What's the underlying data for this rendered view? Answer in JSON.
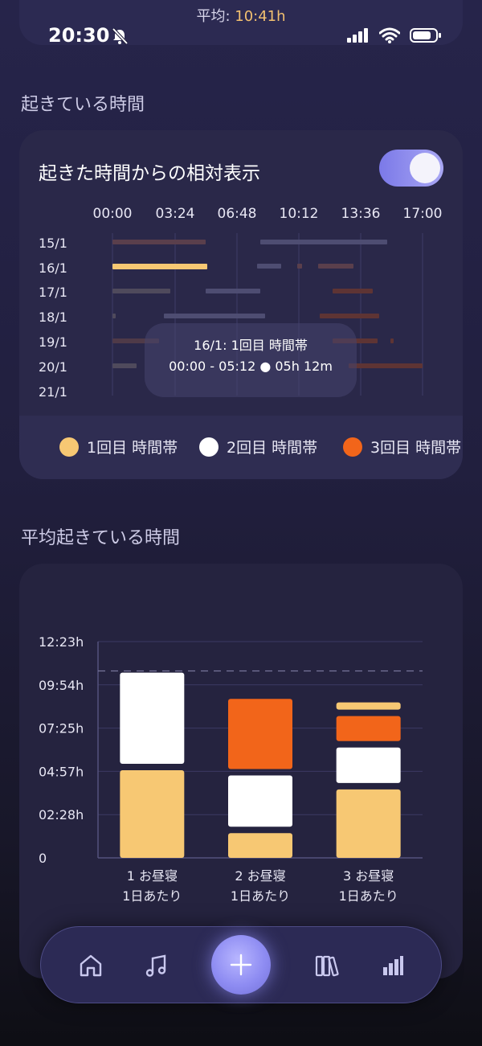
{
  "status": {
    "time": "20:30"
  },
  "top": {
    "avg_prefix": "平均: ",
    "avg_value": "10:41h"
  },
  "section1": {
    "title": "起きている時間"
  },
  "timeline_card": {
    "title": "起きた時間からの相対表示",
    "toggle_on": true,
    "hours": [
      "00:00",
      "03:24",
      "06:48",
      "10:12",
      "13:36",
      "17:00"
    ],
    "dates": [
      "15/1",
      "16/1",
      "17/1",
      "18/1",
      "19/1",
      "20/1",
      "21/1"
    ],
    "tooltip": {
      "line1": "16/1: 1回目 時間帯",
      "line2": "00:00 - 05:12 ● 05h 12m"
    },
    "legend": [
      {
        "label": "1回目 時間帯",
        "color": "#f7c873"
      },
      {
        "label": "2回目 時間帯",
        "color": "#ffffff"
      },
      {
        "label": "3回目 時間帯",
        "color": "#f2651a"
      }
    ]
  },
  "section2": {
    "title": "平均起きている時間"
  },
  "chart_data": {
    "type": "bar",
    "stacked": true,
    "categories": [
      "1 お昼寝\n1日あたり",
      "2 お昼寝\n1日あたり",
      "3 お昼寝\n1日あたり"
    ],
    "category_lines": [
      [
        "1 お昼寝",
        "1日あたり"
      ],
      [
        "2 お昼寝",
        "1日あたり"
      ],
      [
        "3 お昼寝",
        "1日あたり"
      ]
    ],
    "y_ticks": [
      "0",
      "02:28h",
      "04:57h",
      "07:25h",
      "09:54h",
      "12:23h"
    ],
    "ylim": [
      0,
      12.38
    ],
    "average_line": 10.7,
    "stacks": [
      [
        {
          "value": 5.2,
          "color": "#f7c873"
        },
        {
          "value": 5.4,
          "color": "#ffffff"
        }
      ],
      [
        {
          "value": 1.6,
          "color": "#f7c873"
        },
        {
          "value": 3.3,
          "color": "#ffffff"
        },
        {
          "value": 4.2,
          "color": "#f2651a"
        }
      ],
      [
        {
          "value": 4.1,
          "color": "#f7c873"
        },
        {
          "value": 2.4,
          "color": "#ffffff"
        },
        {
          "value": 1.8,
          "color": "#f2651a"
        },
        {
          "value": 0.6,
          "color": "#f7c873"
        }
      ]
    ]
  },
  "nav": {
    "items": [
      "home-icon",
      "music-icon",
      "plus-icon",
      "library-icon",
      "stats-icon"
    ]
  }
}
